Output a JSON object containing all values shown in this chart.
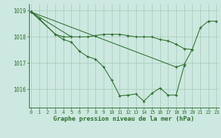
{
  "background_color": "#cce8e0",
  "grid_color": "#aaccbb",
  "line_color": "#2d6e2d",
  "xlabel": "Graphe pression niveau de la mer (hPa)",
  "xticks": [
    0,
    1,
    2,
    3,
    4,
    5,
    6,
    7,
    8,
    9,
    10,
    11,
    12,
    13,
    14,
    15,
    16,
    17,
    18,
    19,
    20,
    21,
    22,
    23
  ],
  "yticks": [
    1016,
    1017,
    1018,
    1019
  ],
  "ylim": [
    1015.3,
    1019.25
  ],
  "xlim": [
    -0.3,
    23.3
  ],
  "series": [
    {
      "x": [
        0,
        1,
        3,
        4,
        5
      ],
      "y": [
        1018.95,
        1018.7,
        1018.1,
        1018.0,
        1018.0
      ]
    },
    {
      "x": [
        0,
        3,
        4,
        5,
        6,
        7,
        8,
        9,
        10,
        11,
        12,
        13,
        14,
        15,
        16,
        17,
        18,
        19
      ],
      "y": [
        1018.95,
        1018.1,
        1017.9,
        1017.8,
        1017.45,
        1017.25,
        1017.15,
        1016.85,
        1016.35,
        1015.75,
        1015.78,
        1015.82,
        1015.55,
        1015.85,
        1016.05,
        1015.78,
        1015.78,
        1016.9
      ]
    },
    {
      "x": [
        0,
        5,
        6,
        7,
        8,
        9,
        10,
        11,
        12,
        13,
        14,
        15,
        16,
        17,
        18,
        19,
        20
      ],
      "y": [
        1018.95,
        1018.0,
        1018.0,
        1018.0,
        1018.05,
        1018.1,
        1018.1,
        1018.1,
        1018.05,
        1018.0,
        1018.0,
        1018.0,
        1017.9,
        1017.85,
        1017.72,
        1017.55,
        1017.52
      ]
    },
    {
      "x": [
        0,
        18,
        19,
        20,
        21,
        22,
        23
      ],
      "y": [
        1018.95,
        1016.85,
        1016.95,
        1017.52,
        1018.35,
        1018.6,
        1018.6
      ]
    }
  ]
}
